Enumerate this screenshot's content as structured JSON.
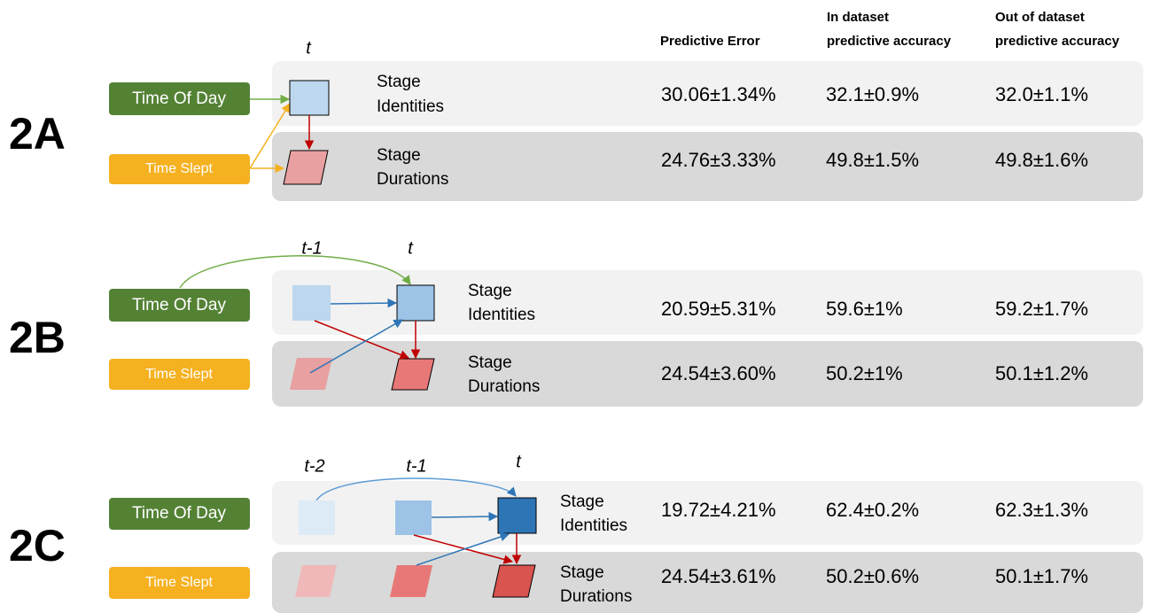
{
  "header": {
    "columns": [
      [
        "Predictive Error"
      ],
      [
        "In dataset",
        "predictive accuracy"
      ],
      [
        "Out of dataset",
        "predictive accuracy"
      ]
    ]
  },
  "panels": [
    {
      "label": "2A",
      "times": [
        "t"
      ],
      "inputs": [
        "Time Of Day",
        "Time Slept"
      ],
      "rows": [
        {
          "label": [
            "Stage",
            "Identities"
          ],
          "values": [
            "30.06±1.34%",
            "32.1±0.9%",
            "32.0±1.1%"
          ]
        },
        {
          "label": [
            "Stage",
            "Durations"
          ],
          "values": [
            "24.76±3.33%",
            "49.8±1.5%",
            "49.8±1.6%"
          ]
        }
      ]
    },
    {
      "label": "2B",
      "times": [
        "t-1",
        "t"
      ],
      "inputs": [
        "Time Of Day",
        "Time Slept"
      ],
      "rows": [
        {
          "label": [
            "Stage",
            "Identities"
          ],
          "values": [
            "20.59±5.31%",
            "59.6±1%",
            "59.2±1.7%"
          ]
        },
        {
          "label": [
            "Stage",
            "Durations"
          ],
          "values": [
            "24.54±3.60%",
            "50.2±1%",
            "50.1±1.2%"
          ]
        }
      ]
    },
    {
      "label": "2C",
      "times": [
        "t-2",
        "t-1",
        "t"
      ],
      "inputs": [
        "Time Of Day",
        "Time Slept"
      ],
      "rows": [
        {
          "label": [
            "Stage",
            "Identities"
          ],
          "values": [
            "19.72±4.21%",
            "62.4±0.2%",
            "62.3±1.3%"
          ]
        },
        {
          "label": [
            "Stage",
            "Durations"
          ],
          "values": [
            "24.54±3.61%",
            "50.2±0.6%",
            "50.1±1.7%"
          ]
        }
      ]
    }
  ]
}
